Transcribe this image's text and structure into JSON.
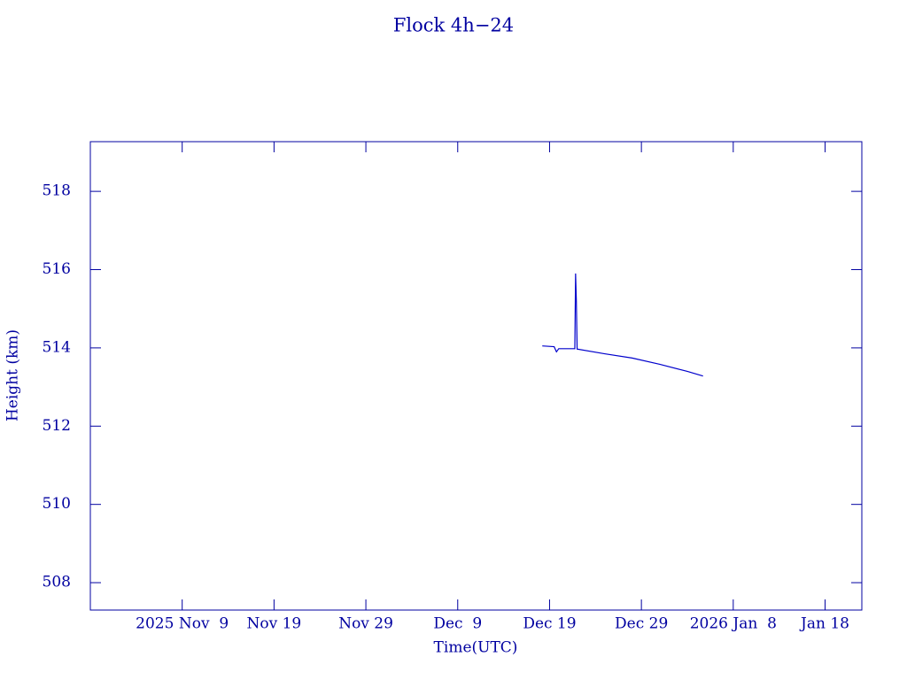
{
  "chart_data": {
    "type": "line",
    "title": "Flock 4h−24",
    "x_label": "Time(UTC)",
    "y_label": "Height (km)",
    "x": [
      "2025-12-18T05:00",
      "2025-12-19T12:00",
      "2025-12-19T18:00",
      "2025-12-20T00:00",
      "2025-12-21T18:00",
      "2025-12-21T20:00",
      "2025-12-21T22:00",
      "2025-12-22T00:00",
      "2025-12-25T00:00",
      "2025-12-28T00:00",
      "2025-12-31T00:00",
      "2026-01-03T00:00",
      "2026-01-04T17:00"
    ],
    "series": [
      {
        "name": "Height",
        "color": "#0000cc",
        "values": [
          514.05,
          514.03,
          513.9,
          513.98,
          513.98,
          515.9,
          515.2,
          513.97,
          513.85,
          513.74,
          513.58,
          513.4,
          513.28
        ]
      }
    ],
    "xlim": [
      "2025-10-30",
      "2026-01-22"
    ],
    "xticks": [
      {
        "value": "2025-11-09",
        "label": "2025 Nov  9"
      },
      {
        "value": "2025-11-19",
        "label": "Nov 19"
      },
      {
        "value": "2025-11-29",
        "label": "Nov 29"
      },
      {
        "value": "2025-12-09",
        "label": "Dec  9"
      },
      {
        "value": "2025-12-19",
        "label": "Dec 19"
      },
      {
        "value": "2025-12-29",
        "label": "Dec 29"
      },
      {
        "value": "2026-01-08",
        "label": "2026 Jan  8"
      },
      {
        "value": "2026-01-18",
        "label": "Jan 18"
      }
    ],
    "ylim": [
      507.3,
      519.27
    ],
    "yticks": [
      508,
      510,
      512,
      514,
      516,
      518
    ],
    "grid": false
  }
}
